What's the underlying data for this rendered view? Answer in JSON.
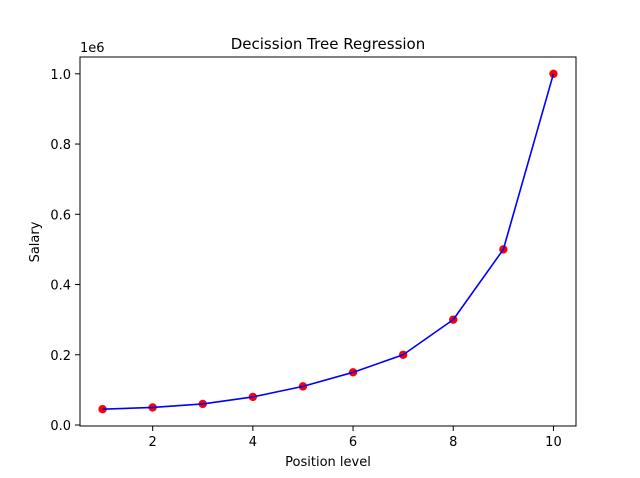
{
  "chart_data": {
    "type": "scatter",
    "title": "Decission Tree Regression",
    "xlabel": "Position level",
    "ylabel": "Salary",
    "y_offset_label": "1e6",
    "xlim": [
      0.55,
      10.45
    ],
    "ylim": [
      -0.0028,
      1.0478
    ],
    "x_ticks": [
      2,
      4,
      6,
      8,
      10
    ],
    "x_tick_labels": [
      "2",
      "4",
      "6",
      "8",
      "10"
    ],
    "y_ticks": [
      0.0,
      0.2,
      0.4,
      0.6,
      0.8,
      1.0
    ],
    "y_tick_labels": [
      "0.0",
      "0.2",
      "0.4",
      "0.6",
      "0.8",
      "1.0"
    ],
    "grid": false,
    "series": [
      {
        "kind": "scatter",
        "color": "#ff0000",
        "x": [
          1,
          2,
          3,
          4,
          5,
          6,
          7,
          8,
          9,
          10
        ],
        "y": [
          0.045,
          0.05,
          0.06,
          0.08,
          0.11,
          0.15,
          0.2,
          0.3,
          0.5,
          1.0
        ]
      },
      {
        "kind": "line",
        "color": "#0000ff",
        "x": [
          1,
          2,
          3,
          4,
          5,
          6,
          7,
          8,
          9,
          10
        ],
        "y": [
          0.045,
          0.05,
          0.06,
          0.08,
          0.11,
          0.15,
          0.2,
          0.3,
          0.5,
          1.0
        ]
      }
    ]
  }
}
